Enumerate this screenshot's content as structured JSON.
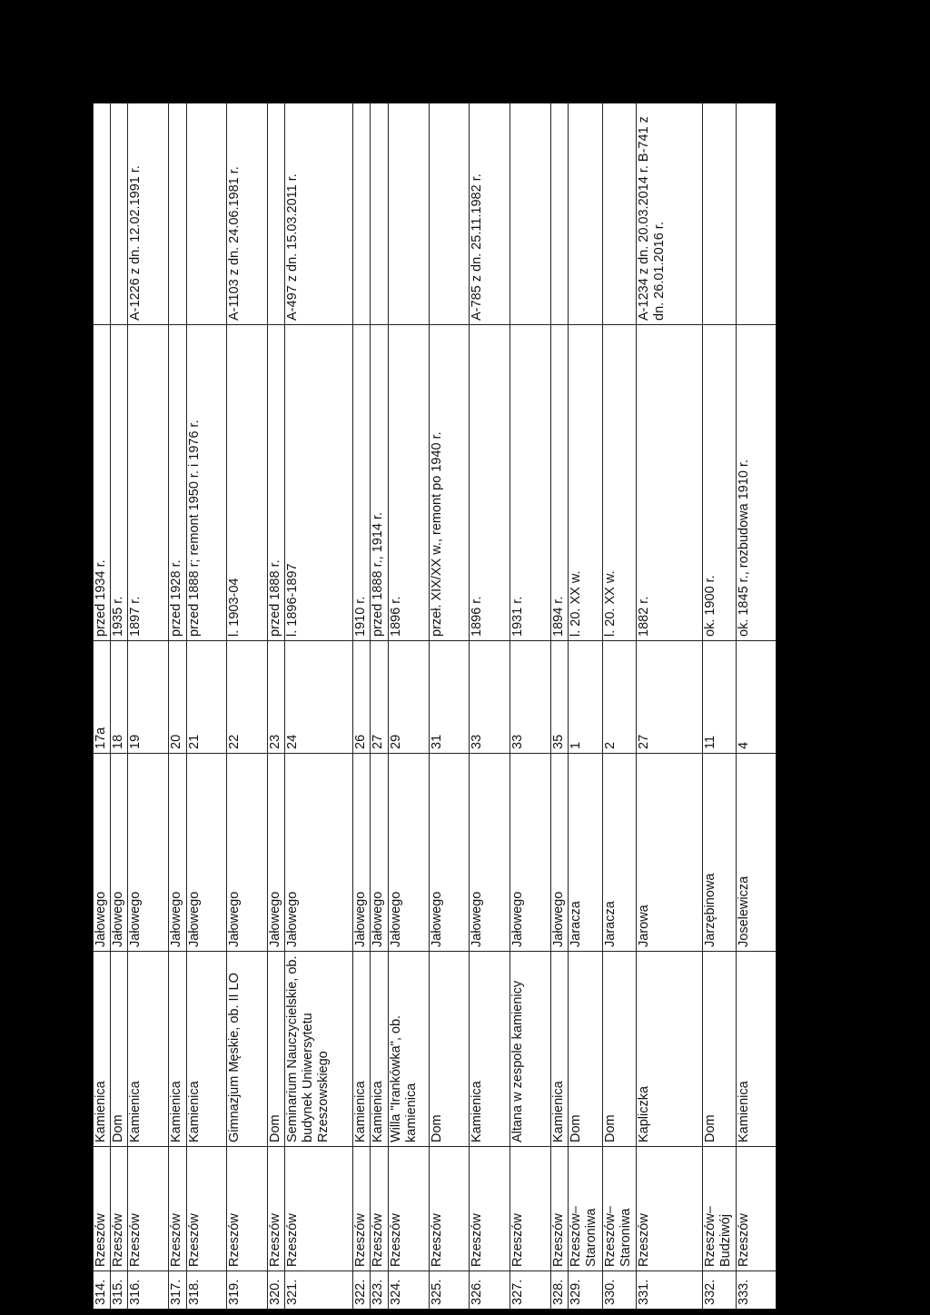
{
  "rows": [
    {
      "no": "314.",
      "city": "Rzeszów",
      "type": "Kamienica",
      "street": "Jałowego",
      "number": "17a",
      "date": "przed 1934 r.",
      "register": ""
    },
    {
      "no": "315.",
      "city": "Rzeszów",
      "type": "Dom",
      "street": "Jałowego",
      "number": "18",
      "date": "1935 r.",
      "register": ""
    },
    {
      "no": "316.",
      "city": "Rzeszów",
      "type": "Kamienica",
      "street": "Jałowego",
      "number": "19",
      "date": "1897 r.",
      "register": "A-1226 z dn. 12.02.1991 r."
    },
    {
      "no": "317.",
      "city": "Rzeszów",
      "type": "Kamienica",
      "street": "Jałowego",
      "number": "20",
      "date": "przed 1928 r.",
      "register": ""
    },
    {
      "no": "318.",
      "city": "Rzeszów",
      "type": "Kamienica",
      "street": "Jałowego",
      "number": "21",
      "date": "przed 1888 r; remont 1950 r. i 1976 r.",
      "register": ""
    },
    {
      "no": "319.",
      "city": "Rzeszów",
      "type": "Gimnazjum Męskie, ob. II LO",
      "street": "Jałowego",
      "number": "22",
      "date": "l. 1903-04",
      "register": "A-1103 z dn. 24.06.1981 r."
    },
    {
      "no": "320.",
      "city": "Rzeszów",
      "type": "Dom",
      "street": "Jałowego",
      "number": "23",
      "date": "przed 1888 r.",
      "register": ""
    },
    {
      "no": "321.",
      "city": "Rzeszów",
      "type": "Seminarium Nauczycielskie, ob. budynek Uniwersytetu Rzeszowskiego",
      "street": "Jałowego",
      "number": "24",
      "date": "l. 1896-1897",
      "register": "A-497 z dn. 15.03.2011 r."
    },
    {
      "no": "322.",
      "city": "Rzeszów",
      "type": "Kamienica",
      "street": "Jałowego",
      "number": "26",
      "date": "1910 r.",
      "register": ""
    },
    {
      "no": "323.",
      "city": "Rzeszów",
      "type": "Kamienica",
      "street": "Jałowego",
      "number": "27",
      "date": "przed 1888 r., 1914 r.",
      "register": ""
    },
    {
      "no": "324.",
      "city": "Rzeszów",
      "type": "Willa \"Irankówka\", ob. kamienica",
      "street": "Jałowego",
      "number": "29",
      "date": "1896 r.",
      "register": ""
    },
    {
      "no": "325.",
      "city": "Rzeszów",
      "type": "Dom",
      "street": "Jałowego",
      "number": "31",
      "date": "przeł. XIX/XX w., remont po 1940 r.",
      "register": ""
    },
    {
      "no": "326.",
      "city": "Rzeszów",
      "type": "Kamienica",
      "street": "Jałowego",
      "number": "33",
      "date": "1896 r.",
      "register": "A-785 z dn. 25.11.1982 r."
    },
    {
      "no": "327.",
      "city": "Rzeszów",
      "type": "Altana w zespole kamienicy",
      "street": "Jałowego",
      "number": "33",
      "date": "1931 r.",
      "register": ""
    },
    {
      "no": "328.",
      "city": "Rzeszów",
      "type": "Kamienica",
      "street": "Jałowego",
      "number": "35",
      "date": "1894 r.",
      "register": ""
    },
    {
      "no": "329.",
      "city": "Rzeszów– Staroniwa",
      "type": "Dom",
      "street": "Jaracza",
      "number": "1",
      "date": "l. 20. XX w.",
      "register": ""
    },
    {
      "no": "330.",
      "city": "Rzeszów– Staroniwa",
      "type": "Dom",
      "street": "Jaracza",
      "number": "2",
      "date": "l. 20. XX w.",
      "register": ""
    },
    {
      "no": "331.",
      "city": "Rzeszów",
      "type": "Kapliczka",
      "street": "Jarowa",
      "number": "27",
      "date": "1882 r.",
      "register": "A-1234 z dn. 20.03.2014 r. B-741 z dn. 26.01.2016 r."
    },
    {
      "no": "332.",
      "city": "Rzeszów– Budziwój",
      "type": "Dom",
      "street": "Jarzębinowa",
      "number": "11",
      "date": "ok. 1900 r.",
      "register": ""
    },
    {
      "no": "333.",
      "city": "Rzeszów",
      "type": "Kamienica",
      "street": "Joselewicza",
      "number": "4",
      "date": "ok. 1845 r., rozbudowa 1910 r.",
      "register": ""
    }
  ]
}
